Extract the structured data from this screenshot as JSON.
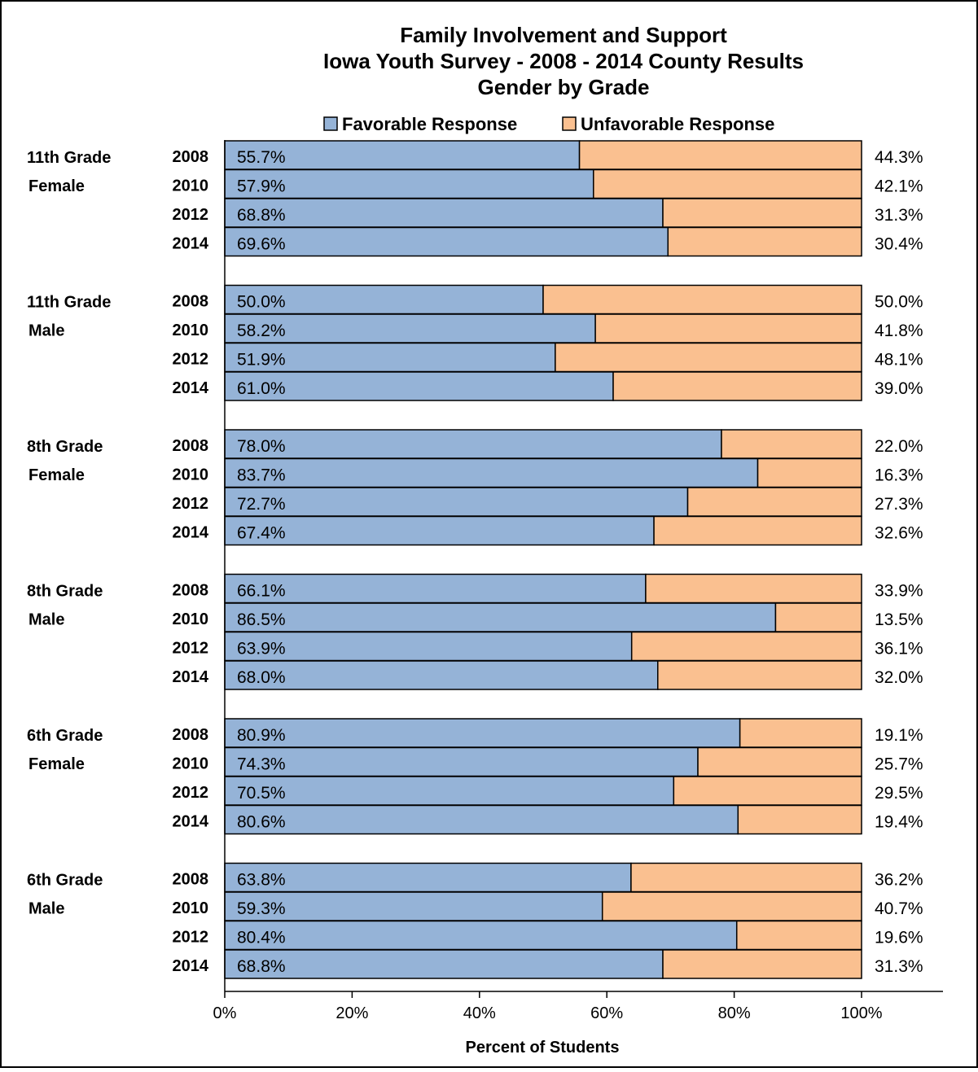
{
  "chart_data": {
    "type": "bar",
    "stacked": true,
    "orientation": "horizontal",
    "title_lines": [
      "Family Involvement and Support",
      "Iowa Youth Survey - 2008 - 2014 County Results",
      "Gender by Grade"
    ],
    "xlabel": "Percent of Students",
    "xlim": [
      0,
      100
    ],
    "x_ticks": [
      "0%",
      "20%",
      "40%",
      "60%",
      "80%",
      "100%"
    ],
    "legend": {
      "position": "top",
      "items": [
        {
          "name": "Favorable Response",
          "color": "#95b3d7"
        },
        {
          "name": "Unfavorable Response",
          "color": "#fac090"
        }
      ]
    },
    "groups": [
      {
        "label_lines": [
          "11th Grade",
          "Female"
        ],
        "rows": [
          {
            "year": "2008",
            "favorable": 55.7,
            "unfavorable": 44.3,
            "favorable_label": "55.7%",
            "unfavorable_label": "44.3%"
          },
          {
            "year": "2010",
            "favorable": 57.9,
            "unfavorable": 42.1,
            "favorable_label": "57.9%",
            "unfavorable_label": "42.1%"
          },
          {
            "year": "2012",
            "favorable": 68.8,
            "unfavorable": 31.3,
            "favorable_label": "68.8%",
            "unfavorable_label": "31.3%"
          },
          {
            "year": "2014",
            "favorable": 69.6,
            "unfavorable": 30.4,
            "favorable_label": "69.6%",
            "unfavorable_label": "30.4%"
          }
        ]
      },
      {
        "label_lines": [
          "11th Grade",
          "Male"
        ],
        "rows": [
          {
            "year": "2008",
            "favorable": 50.0,
            "unfavorable": 50.0,
            "favorable_label": "50.0%",
            "unfavorable_label": "50.0%"
          },
          {
            "year": "2010",
            "favorable": 58.2,
            "unfavorable": 41.8,
            "favorable_label": "58.2%",
            "unfavorable_label": "41.8%"
          },
          {
            "year": "2012",
            "favorable": 51.9,
            "unfavorable": 48.1,
            "favorable_label": "51.9%",
            "unfavorable_label": "48.1%"
          },
          {
            "year": "2014",
            "favorable": 61.0,
            "unfavorable": 39.0,
            "favorable_label": "61.0%",
            "unfavorable_label": "39.0%"
          }
        ]
      },
      {
        "label_lines": [
          "8th Grade",
          "Female"
        ],
        "rows": [
          {
            "year": "2008",
            "favorable": 78.0,
            "unfavorable": 22.0,
            "favorable_label": "78.0%",
            "unfavorable_label": "22.0%"
          },
          {
            "year": "2010",
            "favorable": 83.7,
            "unfavorable": 16.3,
            "favorable_label": "83.7%",
            "unfavorable_label": "16.3%"
          },
          {
            "year": "2012",
            "favorable": 72.7,
            "unfavorable": 27.3,
            "favorable_label": "72.7%",
            "unfavorable_label": "27.3%"
          },
          {
            "year": "2014",
            "favorable": 67.4,
            "unfavorable": 32.6,
            "favorable_label": "67.4%",
            "unfavorable_label": "32.6%"
          }
        ]
      },
      {
        "label_lines": [
          "8th Grade",
          "Male"
        ],
        "rows": [
          {
            "year": "2008",
            "favorable": 66.1,
            "unfavorable": 33.9,
            "favorable_label": "66.1%",
            "unfavorable_label": "33.9%"
          },
          {
            "year": "2010",
            "favorable": 86.5,
            "unfavorable": 13.5,
            "favorable_label": "86.5%",
            "unfavorable_label": "13.5%"
          },
          {
            "year": "2012",
            "favorable": 63.9,
            "unfavorable": 36.1,
            "favorable_label": "63.9%",
            "unfavorable_label": "36.1%"
          },
          {
            "year": "2014",
            "favorable": 68.0,
            "unfavorable": 32.0,
            "favorable_label": "68.0%",
            "unfavorable_label": "32.0%"
          }
        ]
      },
      {
        "label_lines": [
          "6th Grade",
          "Female"
        ],
        "rows": [
          {
            "year": "2008",
            "favorable": 80.9,
            "unfavorable": 19.1,
            "favorable_label": "80.9%",
            "unfavorable_label": "19.1%"
          },
          {
            "year": "2010",
            "favorable": 74.3,
            "unfavorable": 25.7,
            "favorable_label": "74.3%",
            "unfavorable_label": "25.7%"
          },
          {
            "year": "2012",
            "favorable": 70.5,
            "unfavorable": 29.5,
            "favorable_label": "70.5%",
            "unfavorable_label": "29.5%"
          },
          {
            "year": "2014",
            "favorable": 80.6,
            "unfavorable": 19.4,
            "favorable_label": "80.6%",
            "unfavorable_label": "19.4%"
          }
        ]
      },
      {
        "label_lines": [
          "6th Grade",
          "Male"
        ],
        "rows": [
          {
            "year": "2008",
            "favorable": 63.8,
            "unfavorable": 36.2,
            "favorable_label": "63.8%",
            "unfavorable_label": "36.2%"
          },
          {
            "year": "2010",
            "favorable": 59.3,
            "unfavorable": 40.7,
            "favorable_label": "59.3%",
            "unfavorable_label": "40.7%"
          },
          {
            "year": "2012",
            "favorable": 80.4,
            "unfavorable": 19.6,
            "favorable_label": "80.4%",
            "unfavorable_label": "19.6%"
          },
          {
            "year": "2014",
            "favorable": 68.8,
            "unfavorable": 31.3,
            "favorable_label": "68.8%",
            "unfavorable_label": "31.3%"
          }
        ]
      }
    ]
  }
}
